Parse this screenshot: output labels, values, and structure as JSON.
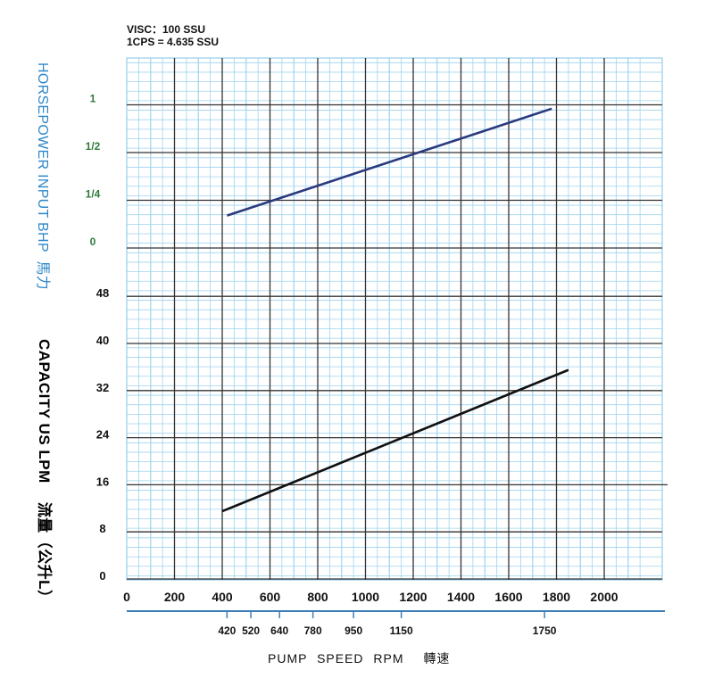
{
  "chart_data": {
    "type": "line",
    "annotations": [
      "VISC：100 SSU",
      "1CPS = 4.635 SSU"
    ],
    "hp_axis": {
      "label": "HORSEPOWER INPUT BHP",
      "label_cn": "馬力",
      "ticks": [
        "1",
        "1/2",
        "1/4",
        "0"
      ]
    },
    "capacity_axis": {
      "label": "CAPACITY  US LPM",
      "label_cn": "流量（公升L）",
      "ticks": [
        0,
        8,
        16,
        24,
        32,
        40,
        48
      ],
      "ylim": [
        0,
        56
      ]
    },
    "x_axis": {
      "label": "PUMP  SPEED  RPM",
      "label_cn": "轉速",
      "ticks": [
        0,
        200,
        400,
        600,
        800,
        1000,
        1200,
        1400,
        1600,
        1800,
        2000
      ],
      "xlim": [
        0,
        2200
      ],
      "secondary_ticks": [
        420,
        520,
        640,
        780,
        950,
        1150,
        1750
      ]
    },
    "series": [
      {
        "axis": "hp",
        "color": "#2a3a7e",
        "x": [
          420,
          1780
        ],
        "y": [
          0.68,
          2.92
        ]
      },
      {
        "axis": "capacity",
        "color": "#111111",
        "x": [
          400,
          1850
        ],
        "y": [
          11.5,
          35.5
        ]
      }
    ]
  }
}
